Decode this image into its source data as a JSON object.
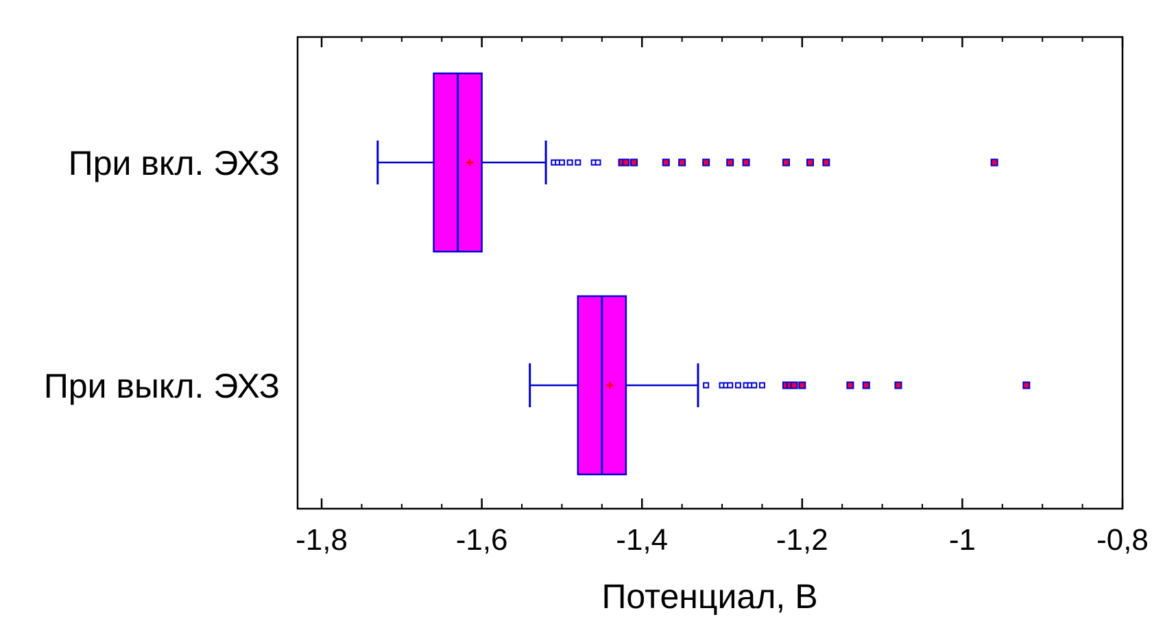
{
  "chart_data": {
    "type": "boxplot",
    "orientation": "horizontal",
    "xlabel": "Потенциал, В",
    "xlim": [
      -1.83,
      -0.8
    ],
    "xticks": [
      {
        "value": -1.8,
        "label": "-1,8"
      },
      {
        "value": -1.6,
        "label": "-1,6"
      },
      {
        "value": -1.4,
        "label": "-1,4"
      },
      {
        "value": -1.2,
        "label": "-1,2"
      },
      {
        "value": -1.0,
        "label": "-1"
      },
      {
        "value": -0.8,
        "label": "-0,8"
      }
    ],
    "minor_step": 0.05,
    "grid": false,
    "colors": {
      "box_fill": "#ff00ff",
      "box_stroke": "#0000cc",
      "mean_marker": "#ff0000",
      "outlier_stroke": "#0000cc",
      "far_outlier_fill": "#e8004a",
      "axis": "#000000"
    },
    "categories": [
      "При вкл. ЭХЗ",
      "При выкл. ЭХЗ"
    ],
    "series": [
      {
        "label": "При вкл. ЭХЗ",
        "whisker_low": -1.73,
        "q1": -1.66,
        "median": -1.63,
        "q3": -1.6,
        "whisker_high": -1.52,
        "mean": -1.615,
        "outliers": [
          -1.51,
          -1.505,
          -1.5,
          -1.49,
          -1.48,
          -1.46,
          -1.455
        ],
        "far_outliers": [
          -1.425,
          -1.42,
          -1.41,
          -1.37,
          -1.35,
          -1.32,
          -1.29,
          -1.27,
          -1.22,
          -1.19,
          -1.17,
          -0.96
        ]
      },
      {
        "label": "При выкл. ЭХЗ",
        "whisker_low": -1.54,
        "q1": -1.48,
        "median": -1.45,
        "q3": -1.42,
        "whisker_high": -1.33,
        "mean": -1.44,
        "outliers": [
          -1.32,
          -1.3,
          -1.295,
          -1.29,
          -1.28,
          -1.27,
          -1.265,
          -1.26,
          -1.25
        ],
        "far_outliers": [
          -1.22,
          -1.215,
          -1.21,
          -1.2,
          -1.14,
          -1.12,
          -1.08,
          -0.92
        ]
      }
    ]
  }
}
